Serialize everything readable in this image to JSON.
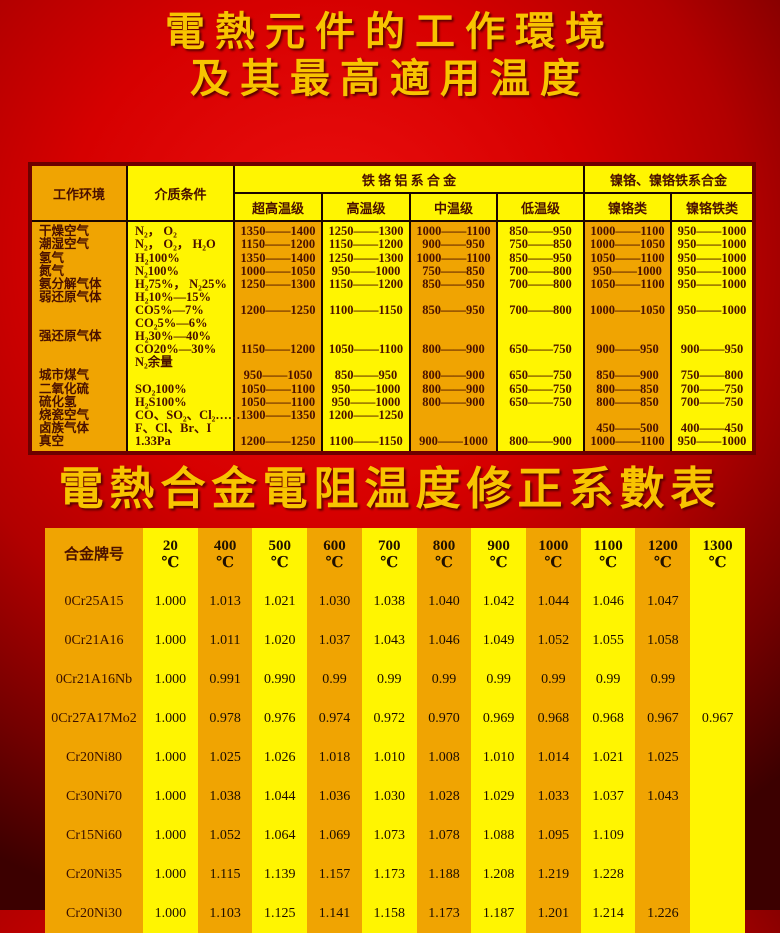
{
  "titles": {
    "main_line1": "電熱元件的工作環境",
    "main_line2": "及其最高適用温度",
    "section": "電熱合金電阻温度修正系數表"
  },
  "colors": {
    "background_red": "#d60000",
    "dark_red_edge": "#3c0000",
    "title_yellow": "#f8c400",
    "cell_orange": "#f0a402",
    "cell_yellow": "#fff501",
    "table_text": "#4a1000"
  },
  "env_table": {
    "header": {
      "col_env": "工作环境",
      "col_medium": "介质条件",
      "group_fecral": "铁 铬 铝 系 合 金",
      "group_nicr": "镍铬、镍铬铁系合金",
      "grades": [
        "超高温级",
        "高温级",
        "中温级",
        "低温级",
        "镍铬类",
        "镍铬铁类"
      ]
    },
    "columns": [
      [
        "干燥空气",
        "潮湿空气",
        "氢气",
        "氮气",
        "氨分解气体",
        "弱还原气体",
        "",
        "",
        "强还原气体",
        "",
        "",
        "城市煤气",
        "二氧化硫",
        "硫化氢",
        "烧瓷空气",
        "卤族气体",
        "真空"
      ],
      [
        "N₂， O₂",
        "N₂， O₂， H₂O",
        "H₂100%",
        "N₂100%",
        "H₂75%， N₂25%",
        "H₂10%—15%",
        "CO5%—7%",
        "CO₂5%—6%",
        "H₂30%—40%",
        "CO20%—30%",
        "N₂余量",
        "",
        "SO₂100%",
        "H₂S100%",
        "CO、SO₂、Cl₂……",
        "F、Cl、Br、I",
        "1.33Pa"
      ],
      [
        "1350——1400",
        "1150——1200",
        "1350——1400",
        "1000——1050",
        "1250——1300",
        "",
        "1200——1250",
        "",
        "",
        "1150——1200",
        "",
        "950——1050",
        "1050——1100",
        "1050——1100",
        "1300——1350",
        "",
        "1200——1250"
      ],
      [
        "1250——1300",
        "1150——1200",
        "1250——1300",
        "950——1000",
        "1150——1200",
        "",
        "1100——1150",
        "",
        "",
        "1050——1100",
        "",
        "850——950",
        "950——1000",
        "950——1000",
        "1200——1250",
        "",
        "1100——1150"
      ],
      [
        "1000——1100",
        "900——950",
        "1000——1100",
        "750——850",
        "850——950",
        "",
        "850——950",
        "",
        "",
        "800——900",
        "",
        "800——900",
        "800——900",
        "800——900",
        "",
        "",
        "900——1000"
      ],
      [
        "850——950",
        "750——850",
        "850——950",
        "700——800",
        "700——800",
        "",
        "700——800",
        "",
        "",
        "650——750",
        "",
        "650——750",
        "650——750",
        "650——750",
        "",
        "",
        "800——900"
      ],
      [
        "1000——1100",
        "1000——1050",
        "1050——1100",
        "950——1000",
        "1050——1100",
        "",
        "1000——1050",
        "",
        "",
        "900——950",
        "",
        "850——900",
        "800——850",
        "800——850",
        "",
        "450——500",
        "1000——1100"
      ],
      [
        "950——1000",
        "950——1000",
        "950——1000",
        "950——1000",
        "950——1000",
        "",
        "950——1000",
        "",
        "",
        "900——950",
        "",
        "750——800",
        "700——750",
        "700——750",
        "",
        "400——450",
        "950——1000"
      ]
    ]
  },
  "coef_table": {
    "name_header": "合金牌号",
    "temp_unit": "℃",
    "temps": [
      "20",
      "400",
      "500",
      "600",
      "700",
      "800",
      "900",
      "1000",
      "1100",
      "1200",
      "1300"
    ],
    "rows": [
      {
        "name": "0Cr25A15",
        "values": [
          "1.000",
          "1.013",
          "1.021",
          "1.030",
          "1.038",
          "1.040",
          "1.042",
          "1.044",
          "1.046",
          "1.047",
          ""
        ]
      },
      {
        "name": "0Cr21A16",
        "values": [
          "1.000",
          "1.011",
          "1.020",
          "1.037",
          "1.043",
          "1.046",
          "1.049",
          "1.052",
          "1.055",
          "1.058",
          ""
        ]
      },
      {
        "name": "0Cr21A16Nb",
        "values": [
          "1.000",
          "0.991",
          "0.990",
          "0.99",
          "0.99",
          "0.99",
          "0.99",
          "0.99",
          "0.99",
          "0.99",
          ""
        ]
      },
      {
        "name": "0Cr27A17Mo2",
        "values": [
          "1.000",
          "0.978",
          "0.976",
          "0.974",
          "0.972",
          "0.970",
          "0.969",
          "0.968",
          "0.968",
          "0.967",
          "0.967"
        ]
      },
      {
        "name": "Cr20Ni80",
        "values": [
          "1.000",
          "1.025",
          "1.026",
          "1.018",
          "1.010",
          "1.008",
          "1.010",
          "1.014",
          "1.021",
          "1.025",
          ""
        ]
      },
      {
        "name": "Cr30Ni70",
        "values": [
          "1.000",
          "1.038",
          "1.044",
          "1.036",
          "1.030",
          "1.028",
          "1.029",
          "1.033",
          "1.037",
          "1.043",
          ""
        ]
      },
      {
        "name": "Cr15Ni60",
        "values": [
          "1.000",
          "1.052",
          "1.064",
          "1.069",
          "1.073",
          "1.078",
          "1.088",
          "1.095",
          "1.109",
          "",
          ""
        ]
      },
      {
        "name": "Cr20Ni35",
        "values": [
          "1.000",
          "1.115",
          "1.139",
          "1.157",
          "1.173",
          "1.188",
          "1.208",
          "1.219",
          "1.228",
          "",
          ""
        ]
      },
      {
        "name": "Cr20Ni30",
        "values": [
          "1.000",
          "1.103",
          "1.125",
          "1.141",
          "1.158",
          "1.173",
          "1.187",
          "1.201",
          "1.214",
          "1.226",
          ""
        ]
      }
    ]
  }
}
